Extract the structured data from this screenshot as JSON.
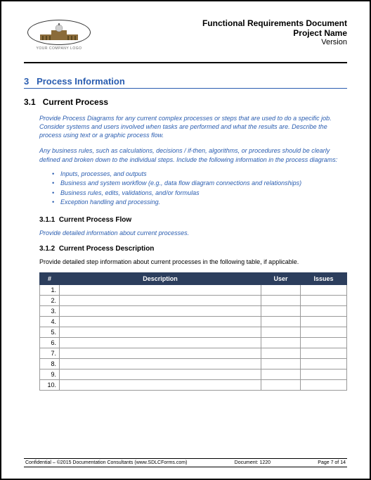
{
  "header": {
    "title": "Functional Requirements Document",
    "project": "Project Name",
    "version": "Version",
    "logo_caption": "YOUR COMPANY LOGO"
  },
  "section": {
    "number": "3",
    "title": "Process Information"
  },
  "subsection": {
    "number": "3.1",
    "title": "Current Process"
  },
  "instructions": {
    "para1": "Provide Process Diagrams for any current complex processes or steps that are used to do a specific job. Consider systems and users involved when tasks are performed and what the results are.  Describe the process using text or a graphic process flow.",
    "para2": "Any business rules, such as calculations, decisions / if-then, algorithms, or procedures should be clearly defined and broken down to the individual steps.  Include the following information in the process diagrams:",
    "bullets": [
      "Inputs, processes, and outputs",
      "Business and system workflow (e.g., data flow diagram connections and relationships)",
      "Business rules, edits, validations, and/or formulas",
      "Exception handling and processing."
    ]
  },
  "subsub1": {
    "number": "3.1.1",
    "title": "Current Process Flow",
    "instruction": "Provide detailed information about current processes."
  },
  "subsub2": {
    "number": "3.1.2",
    "title": "Current Process Description",
    "body": "Provide detailed step information about current processes in the following table, if applicable."
  },
  "table": {
    "columns": [
      "#",
      "Description",
      "User",
      "Issues"
    ],
    "col_widths": [
      "28px",
      "auto",
      "56px",
      "66px"
    ],
    "header_bg": "#2c3e5d",
    "header_fg": "#ffffff",
    "border_color": "#999999",
    "rows": [
      {
        "num": "1.",
        "desc": "",
        "user": "",
        "issues": ""
      },
      {
        "num": "2.",
        "desc": "",
        "user": "",
        "issues": ""
      },
      {
        "num": "3.",
        "desc": "",
        "user": "",
        "issues": ""
      },
      {
        "num": "4.",
        "desc": "",
        "user": "",
        "issues": ""
      },
      {
        "num": "5.",
        "desc": "",
        "user": "",
        "issues": ""
      },
      {
        "num": "6.",
        "desc": "",
        "user": "",
        "issues": ""
      },
      {
        "num": "7.",
        "desc": "",
        "user": "",
        "issues": ""
      },
      {
        "num": "8.",
        "desc": "",
        "user": "",
        "issues": ""
      },
      {
        "num": "9.",
        "desc": "",
        "user": "",
        "issues": ""
      },
      {
        "num": "10.",
        "desc": "",
        "user": "",
        "issues": ""
      }
    ]
  },
  "footer": {
    "left": "Confidential – ©2015 Documentation Consultants (www.SDLCForms.com)",
    "center": "Document: 1220",
    "right": "Page 7 of 14"
  },
  "colors": {
    "heading_blue": "#2a5db0",
    "table_header": "#2c3e5d",
    "text": "#000000"
  }
}
